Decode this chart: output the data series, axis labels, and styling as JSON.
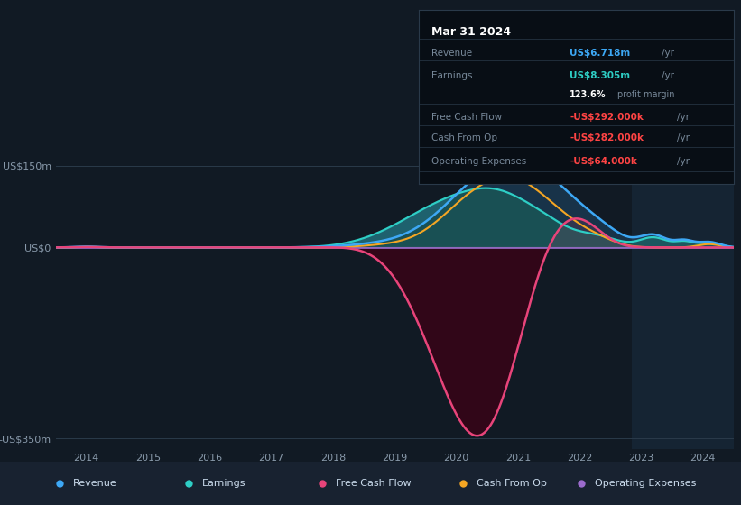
{
  "bg_color": "#111a24",
  "plot_bg_color": "#111a24",
  "title": "Mar 31 2024",
  "ylabel_150": "US$150m",
  "ylabel_0": "US$0",
  "ylabel_neg350": "-US$350m",
  "x_labels": [
    "2014",
    "2015",
    "2016",
    "2017",
    "2018",
    "2019",
    "2020",
    "2021",
    "2022",
    "2023",
    "2024"
  ],
  "legend_items": [
    {
      "label": "Revenue",
      "color": "#3da8f5"
    },
    {
      "label": "Earnings",
      "color": "#2ecec5"
    },
    {
      "label": "Free Cash Flow",
      "color": "#e8447a"
    },
    {
      "label": "Cash From Op",
      "color": "#f5a623"
    },
    {
      "label": "Operating Expenses",
      "color": "#9b6bcc"
    }
  ],
  "ylim": [
    -370,
    185
  ],
  "xlim": [
    2013.5,
    2024.5
  ],
  "revenue_color": "#3da8f5",
  "earnings_color": "#2ecec5",
  "fcf_color": "#e8447a",
  "cashop_color": "#f5a623",
  "opex_color": "#9b6bcc"
}
